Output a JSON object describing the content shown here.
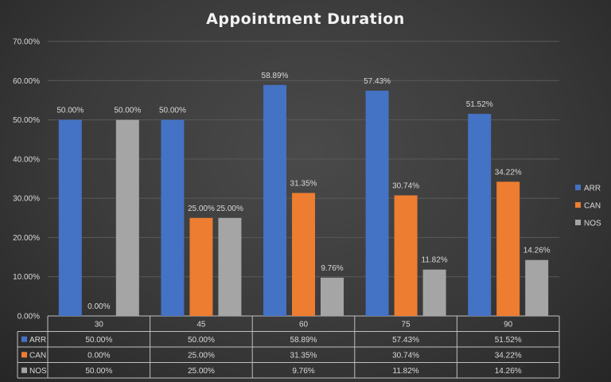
{
  "chart_data": {
    "type": "bar",
    "title": "Appointment  Duration",
    "categories": [
      "30",
      "45",
      "60",
      "75",
      "90"
    ],
    "series": [
      {
        "name": "ARR",
        "color": "#4472c4",
        "values": [
          50.0,
          50.0,
          58.89,
          57.43,
          51.52
        ],
        "labels": [
          "50.00%",
          "50.00%",
          "58.89%",
          "57.43%",
          "51.52%"
        ]
      },
      {
        "name": "CAN",
        "color": "#ed7d31",
        "values": [
          0.0,
          25.0,
          31.35,
          30.74,
          34.22
        ],
        "labels": [
          "0.00%",
          "25.00%",
          "31.35%",
          "30.74%",
          "34.22%"
        ]
      },
      {
        "name": "NOS",
        "color": "#a5a5a5",
        "values": [
          50.0,
          25.0,
          9.76,
          11.82,
          14.26
        ],
        "labels": [
          "50.00%",
          "25.00%",
          "9.76%",
          "11.82%",
          "14.26%"
        ]
      }
    ],
    "ylim": [
      0,
      70
    ],
    "y_ticks": [
      "0.00%",
      "10.00%",
      "20.00%",
      "30.00%",
      "40.00%",
      "50.00%",
      "60.00%",
      "70.00%"
    ],
    "grid": true,
    "legend_position": "right",
    "data_table": true
  }
}
